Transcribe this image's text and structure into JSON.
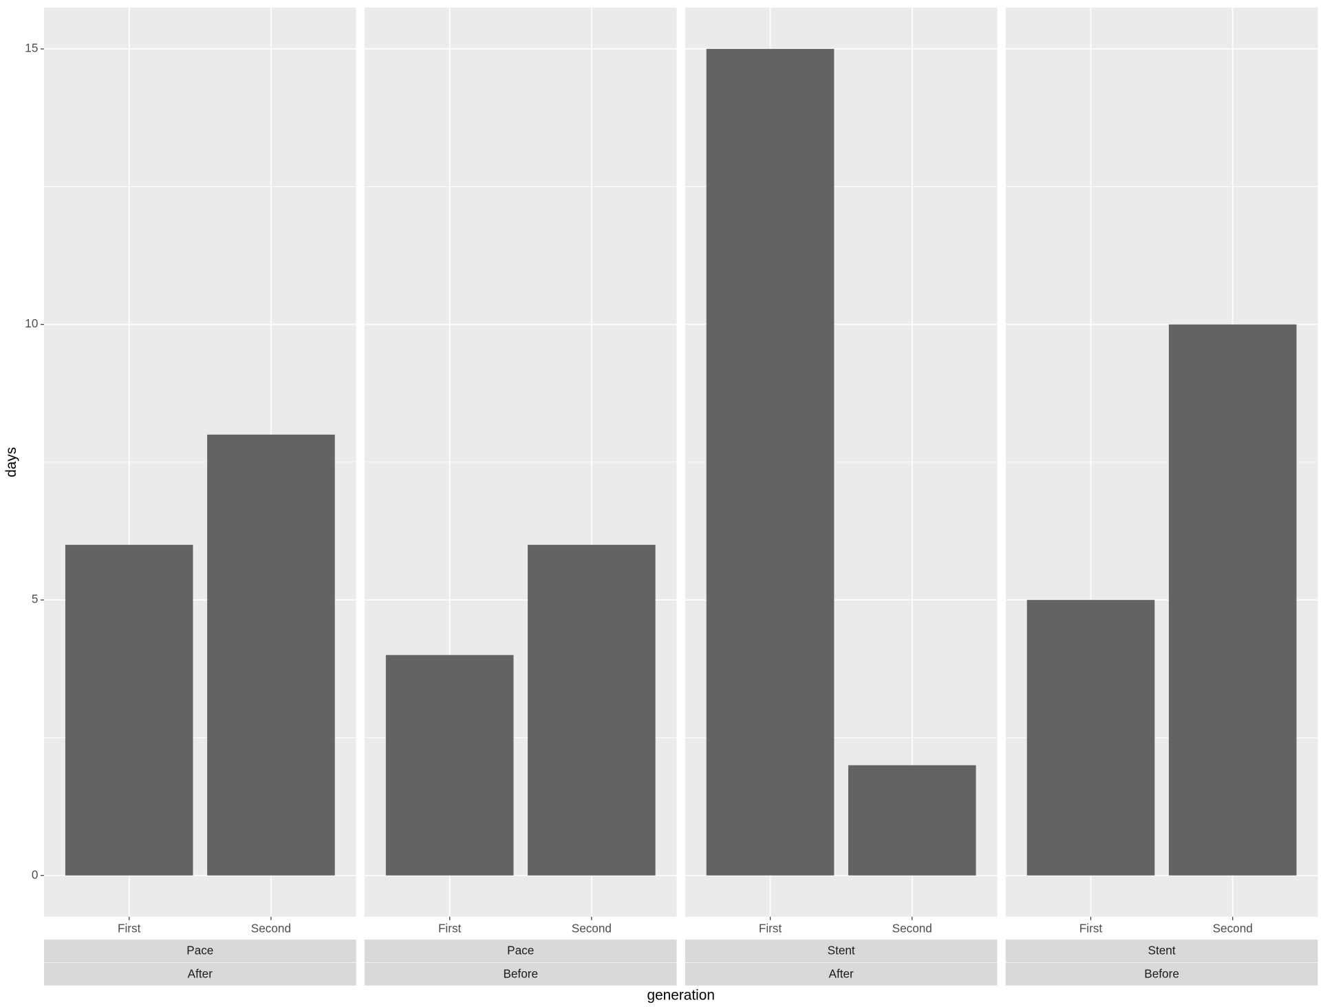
{
  "chart_data": {
    "type": "bar",
    "y_label": "days",
    "x_label": "generation",
    "ylim": [
      -0.75,
      15.75
    ],
    "yticks": [
      0,
      5,
      10,
      15
    ],
    "y_minor_ticks": [
      2.5,
      7.5,
      12.5
    ],
    "grid": true,
    "color": "#636363",
    "panel_background": "#ebebeb",
    "strip_background": "#d9d9d9",
    "facets": [
      {
        "strips": [
          "Pace",
          "After"
        ],
        "categories": [
          "First",
          "Second"
        ],
        "values": [
          6,
          8
        ]
      },
      {
        "strips": [
          "Pace",
          "Before"
        ],
        "categories": [
          "First",
          "Second"
        ],
        "values": [
          4,
          6
        ]
      },
      {
        "strips": [
          "Stent",
          "After"
        ],
        "categories": [
          "First",
          "Second"
        ],
        "values": [
          15,
          2
        ]
      },
      {
        "strips": [
          "Stent",
          "Before"
        ],
        "categories": [
          "First",
          "Second"
        ],
        "values": [
          5,
          10
        ]
      }
    ]
  }
}
